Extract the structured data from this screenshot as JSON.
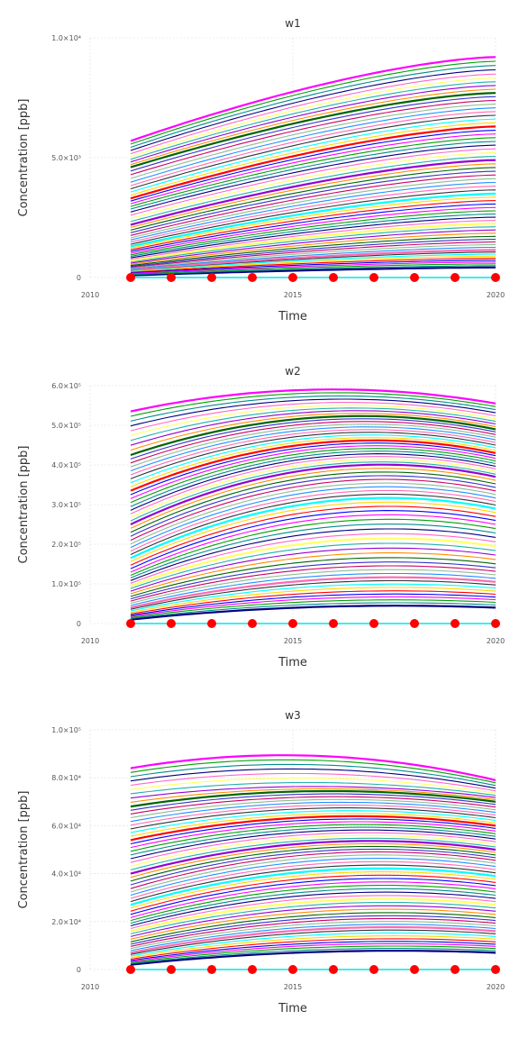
{
  "chart_data": [
    {
      "type": "line",
      "title": "w1",
      "xlabel": "Time",
      "ylabel": "Concentration [ppb]",
      "xlim": [
        2010,
        2020
      ],
      "ylim": [
        0,
        10000
      ],
      "xticks": [
        {
          "value": 2010,
          "label": "2010"
        },
        {
          "value": 2015,
          "label": "2015"
        },
        {
          "value": 2020,
          "label": "2020"
        }
      ],
      "yticks": [
        {
          "value": 0,
          "label": "0"
        },
        {
          "value": 5000,
          "label": "5.0×10³"
        },
        {
          "value": 10000,
          "label": "1.0×10⁴"
        }
      ],
      "grid": true,
      "x": [
        2011,
        2012,
        2013,
        2014,
        2015,
        2016,
        2017,
        2018,
        2019,
        2020
      ],
      "series_start": [
        90,
        220,
        330,
        480,
        700,
        980,
        1300,
        1700,
        2200,
        2800,
        3300,
        3900,
        4600,
        5100,
        5700
      ],
      "series_end": [
        420,
        760,
        1150,
        1650,
        2250,
        2850,
        3500,
        4200,
        4900,
        5600,
        6300,
        7000,
        7700,
        8400,
        9200
      ],
      "series_shape": "rising",
      "points": {
        "name": "observations",
        "color": "#ff0000",
        "values": [
          0,
          0,
          0,
          0,
          0,
          0,
          0,
          0,
          0,
          0
        ]
      }
    },
    {
      "type": "line",
      "title": "w2",
      "xlabel": "Time",
      "ylabel": "Concentration [ppb]",
      "xlim": [
        2010,
        2020
      ],
      "ylim": [
        0,
        600000
      ],
      "xticks": [
        {
          "value": 2010,
          "label": "2010"
        },
        {
          "value": 2015,
          "label": "2015"
        },
        {
          "value": 2020,
          "label": "2020"
        }
      ],
      "yticks": [
        {
          "value": 0,
          "label": "0"
        },
        {
          "value": 100000,
          "label": "1.0×10⁵"
        },
        {
          "value": 200000,
          "label": "2.0×10⁵"
        },
        {
          "value": 300000,
          "label": "3.0×10⁵"
        },
        {
          "value": 400000,
          "label": "4.0×10⁵"
        },
        {
          "value": 500000,
          "label": "5.0×10⁵"
        },
        {
          "value": 600000,
          "label": "6.0×10⁵"
        }
      ],
      "grid": true,
      "x": [
        2011,
        2012,
        2013,
        2014,
        2015,
        2016,
        2017,
        2018,
        2019,
        2020
      ],
      "series_start": [
        10000,
        22000,
        40000,
        65000,
        95000,
        125000,
        165000,
        205000,
        250000,
        290000,
        335000,
        380000,
        425000,
        480000,
        535000
      ],
      "series_end": [
        40000,
        70000,
        105000,
        145000,
        195000,
        245000,
        290000,
        330000,
        370000,
        400000,
        430000,
        460000,
        490000,
        520000,
        555000
      ],
      "series_shape": "peaked",
      "points": {
        "name": "observations",
        "color": "#ff0000",
        "values": [
          0,
          0,
          0,
          0,
          0,
          0,
          0,
          0,
          0,
          0
        ]
      }
    },
    {
      "type": "line",
      "title": "w3",
      "xlabel": "Time",
      "ylabel": "Concentration [ppb]",
      "xlim": [
        2010,
        2020
      ],
      "ylim": [
        0,
        100000
      ],
      "xticks": [
        {
          "value": 2010,
          "label": "2010"
        },
        {
          "value": 2015,
          "label": "2015"
        },
        {
          "value": 2020,
          "label": "2020"
        }
      ],
      "yticks": [
        {
          "value": 0,
          "label": "0"
        },
        {
          "value": 20000,
          "label": "2.0×10⁴"
        },
        {
          "value": 40000,
          "label": "4.0×10⁴"
        },
        {
          "value": 60000,
          "label": "6.0×10⁴"
        },
        {
          "value": 80000,
          "label": "8.0×10⁴"
        },
        {
          "value": 100000,
          "label": "1.0×10⁵"
        }
      ],
      "grid": true,
      "x": [
        2011,
        2012,
        2013,
        2014,
        2015,
        2016,
        2017,
        2018,
        2019,
        2020
      ],
      "series_start": [
        2000,
        4000,
        7000,
        11000,
        16000,
        21000,
        27000,
        33000,
        40000,
        47000,
        54000,
        61000,
        68000,
        76000,
        84000
      ],
      "series_end": [
        7000,
        11000,
        16000,
        21000,
        27000,
        33000,
        39000,
        45000,
        50000,
        55000,
        60000,
        65000,
        70000,
        74000,
        79000
      ],
      "series_shape": "peaked",
      "points": {
        "name": "observations",
        "color": "#ff0000",
        "values": [
          0,
          0,
          0,
          0,
          0,
          0,
          0,
          0,
          0,
          0
        ]
      }
    }
  ],
  "colors": {
    "line_palette": [
      "#000080",
      "#008b8b",
      "#00a000",
      "#ff00ff",
      "#0000ff",
      "#ff0000",
      "#ffd700",
      "#00ffff",
      "#333333",
      "#ff69b4",
      "#1e90ff",
      "#8fbc8f",
      "#cc0066",
      "#3333cc",
      "#006400",
      "#ff8c00",
      "#9400d3",
      "#20b2aa",
      "#ffff66",
      "#ff66cc"
    ],
    "marker": "#ff0000",
    "baseline": "#00e5ee"
  }
}
